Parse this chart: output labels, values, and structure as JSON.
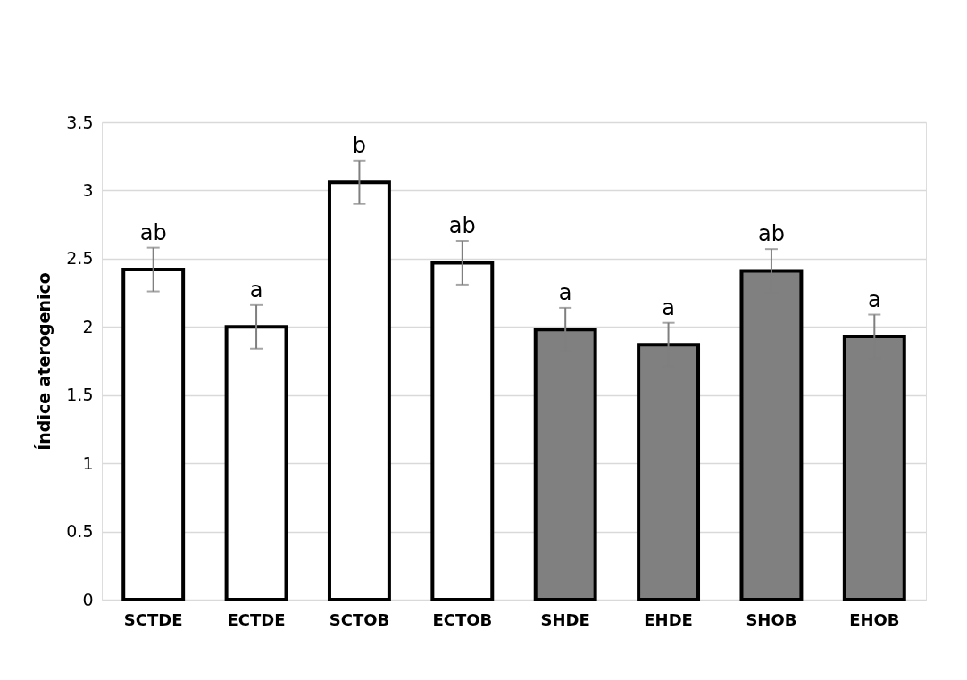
{
  "chart_data": {
    "type": "bar",
    "ylabel": "Índice aterogenico",
    "categories": [
      "SCTDE",
      "ECTDE",
      "SCTOB",
      "ECTOB",
      "SHDE",
      "EHDE",
      "SHOB",
      "EHOB"
    ],
    "values": [
      2.42,
      2.0,
      3.06,
      2.47,
      1.98,
      1.87,
      2.41,
      1.93
    ],
    "errors": [
      0.16,
      0.16,
      0.16,
      0.16,
      0.16,
      0.16,
      0.16,
      0.16
    ],
    "colors": [
      "#ffffff",
      "#ffffff",
      "#ffffff",
      "#ffffff",
      "#808080",
      "#808080",
      "#808080",
      "#808080"
    ],
    "ylim": [
      0,
      3.5
    ],
    "yticks": [
      0,
      0.5,
      1,
      1.5,
      2,
      2.5,
      3,
      3.5
    ],
    "grid": "y",
    "annotations": [
      "ab",
      "a",
      "b",
      "ab",
      "a",
      "a",
      "ab",
      "a"
    ]
  }
}
